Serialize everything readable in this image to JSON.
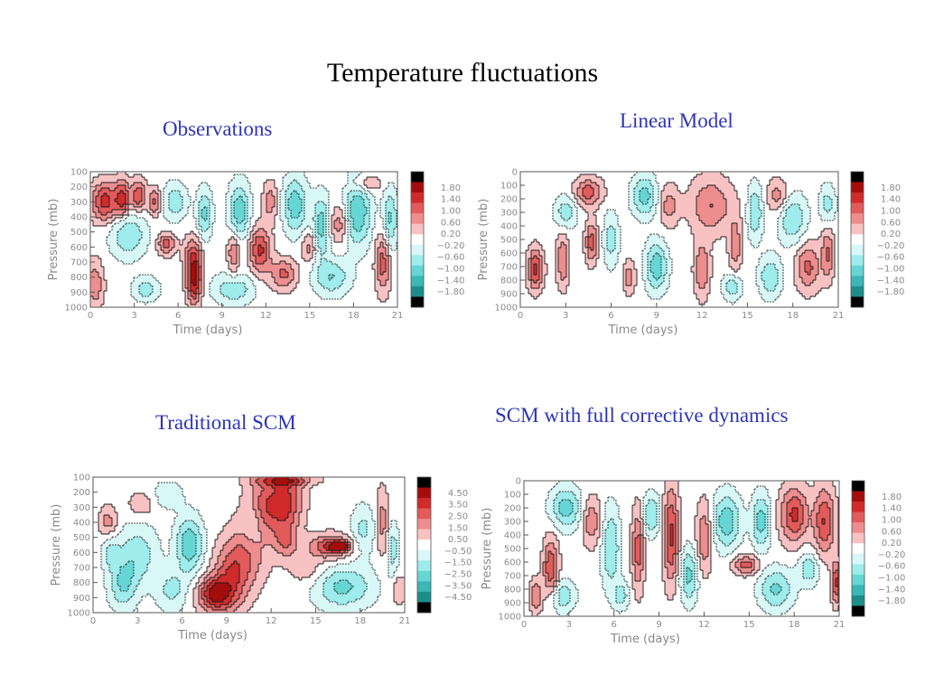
{
  "slide": {
    "title": "Temperature fluctuations"
  },
  "palette": {
    "pos": [
      "#f8c2c2",
      "#ee8d8d",
      "#e25a5a",
      "#d12a2a",
      "#a50d0d",
      "#000000"
    ],
    "neg": [
      "#d8f8f8",
      "#9eeceb",
      "#66d6d4",
      "#3bb7b5",
      "#1d8d8a",
      "#000000"
    ]
  },
  "chart_data": [
    {
      "type": "heatmap",
      "title": "Observations",
      "xlabel": "Time (days)",
      "ylabel": "Pressure (mb)",
      "xlim": [
        0,
        21
      ],
      "ylim": [
        1000,
        100
      ],
      "x_ticks": [
        "0",
        "3",
        "6",
        "9",
        "12",
        "15",
        "18",
        "21"
      ],
      "y_ticks": [
        "100",
        "200",
        "300",
        "400",
        "500",
        "600",
        "700",
        "800",
        "900",
        "1000"
      ],
      "legend": {
        "placement": "right",
        "labels": [
          "1.80",
          "1.40",
          "1.00",
          "0.60",
          "0.20",
          "−0.20",
          "−0.60",
          "−1.00",
          "−1.40",
          "−1.80"
        ]
      },
      "blobs": [
        {
          "t": 1.0,
          "p": 300,
          "rt": 0.9,
          "rp": 130,
          "v": 1.6
        },
        {
          "t": 2.2,
          "p": 280,
          "rt": 0.5,
          "rp": 120,
          "v": 1.5
        },
        {
          "t": 3.3,
          "p": 260,
          "rt": 0.5,
          "rp": 100,
          "v": 1.4
        },
        {
          "t": 4.4,
          "p": 300,
          "rt": 0.4,
          "rp": 90,
          "v": 1.1
        },
        {
          "t": 7.1,
          "p": 820,
          "rt": 0.5,
          "rp": 150,
          "v": 1.9
        },
        {
          "t": 7.0,
          "p": 650,
          "rt": 0.6,
          "rp": 120,
          "v": 1.0
        },
        {
          "t": 5.2,
          "p": 580,
          "rt": 0.6,
          "rp": 70,
          "v": 1.2
        },
        {
          "t": 9.8,
          "p": 640,
          "rt": 0.4,
          "rp": 130,
          "v": 1.0
        },
        {
          "t": 11.6,
          "p": 620,
          "rt": 0.7,
          "rp": 150,
          "v": 1.5
        },
        {
          "t": 13.2,
          "p": 780,
          "rt": 0.9,
          "rp": 100,
          "v": 1.1
        },
        {
          "t": 12.3,
          "p": 300,
          "rt": 0.5,
          "rp": 130,
          "v": 0.8
        },
        {
          "t": 17.0,
          "p": 450,
          "rt": 0.6,
          "rp": 120,
          "v": 0.9
        },
        {
          "t": 20.0,
          "p": 700,
          "rt": 0.5,
          "rp": 200,
          "v": 1.2
        },
        {
          "t": 0.3,
          "p": 850,
          "rt": 0.6,
          "rp": 160,
          "v": 0.9
        },
        {
          "t": 15.0,
          "p": 600,
          "rt": 0.5,
          "rp": 100,
          "v": 0.8
        },
        {
          "t": 18.8,
          "p": 180,
          "rt": 1.0,
          "rp": 60,
          "v": 0.8
        },
        {
          "t": 2.6,
          "p": 520,
          "rt": 1.2,
          "rp": 150,
          "v": -1.0
        },
        {
          "t": 5.8,
          "p": 300,
          "rt": 0.8,
          "rp": 120,
          "v": -0.9
        },
        {
          "t": 7.8,
          "p": 380,
          "rt": 0.5,
          "rp": 160,
          "v": -1.1
        },
        {
          "t": 10.2,
          "p": 360,
          "rt": 0.7,
          "rp": 180,
          "v": -1.3
        },
        {
          "t": 14.0,
          "p": 320,
          "rt": 0.8,
          "rp": 180,
          "v": -1.3
        },
        {
          "t": 15.8,
          "p": 460,
          "rt": 0.6,
          "rp": 200,
          "v": -1.2
        },
        {
          "t": 18.3,
          "p": 360,
          "rt": 0.9,
          "rp": 230,
          "v": -1.4
        },
        {
          "t": 9.8,
          "p": 880,
          "rt": 1.4,
          "rp": 100,
          "v": -0.9
        },
        {
          "t": 16.5,
          "p": 800,
          "rt": 1.2,
          "rp": 120,
          "v": -1.0
        },
        {
          "t": 20.5,
          "p": 420,
          "rt": 0.5,
          "rp": 200,
          "v": -1.1
        },
        {
          "t": 3.8,
          "p": 880,
          "rt": 0.9,
          "rp": 80,
          "v": -0.8
        }
      ]
    },
    {
      "type": "heatmap",
      "title": "Linear Model",
      "xlabel": "Time (days)",
      "ylabel": "Pressure (mb)",
      "xlim": [
        0,
        21
      ],
      "ylim": [
        1000,
        0
      ],
      "x_ticks": [
        "0",
        "3",
        "6",
        "9",
        "12",
        "15",
        "18",
        "21"
      ],
      "y_ticks": [
        "0",
        "100",
        "200",
        "300",
        "400",
        "500",
        "600",
        "700",
        "800",
        "900",
        "1000"
      ],
      "legend": {
        "placement": "right",
        "labels": [
          "1.80",
          "1.40",
          "1.00",
          "0.60",
          "0.20",
          "−0.20",
          "−0.60",
          "−1.00",
          "−1.40",
          "−1.80"
        ]
      },
      "blobs": [
        {
          "t": 4.5,
          "p": 150,
          "rt": 0.9,
          "rp": 100,
          "v": 1.2
        },
        {
          "t": 1.0,
          "p": 720,
          "rt": 0.5,
          "rp": 150,
          "v": 1.5
        },
        {
          "t": 2.8,
          "p": 650,
          "rt": 0.4,
          "rp": 200,
          "v": 1.0
        },
        {
          "t": 4.7,
          "p": 520,
          "rt": 0.4,
          "rp": 150,
          "v": 1.2
        },
        {
          "t": 12.6,
          "p": 250,
          "rt": 1.4,
          "rp": 200,
          "v": 1.0
        },
        {
          "t": 12.0,
          "p": 720,
          "rt": 0.5,
          "rp": 200,
          "v": 1.0
        },
        {
          "t": 17.0,
          "p": 180,
          "rt": 0.7,
          "rp": 120,
          "v": 0.8
        },
        {
          "t": 19.0,
          "p": 700,
          "rt": 0.8,
          "rp": 180,
          "v": 1.1
        },
        {
          "t": 20.3,
          "p": 600,
          "rt": 0.4,
          "rp": 200,
          "v": 1.0
        },
        {
          "t": 9.8,
          "p": 250,
          "rt": 0.6,
          "rp": 150,
          "v": 0.8
        },
        {
          "t": 7.2,
          "p": 780,
          "rt": 0.4,
          "rp": 120,
          "v": 0.8
        },
        {
          "t": 14.2,
          "p": 550,
          "rt": 0.4,
          "rp": 200,
          "v": 0.9
        },
        {
          "t": 8.2,
          "p": 180,
          "rt": 0.8,
          "rp": 150,
          "v": -1.2
        },
        {
          "t": 9.0,
          "p": 700,
          "rt": 0.7,
          "rp": 180,
          "v": -1.3
        },
        {
          "t": 3.0,
          "p": 300,
          "rt": 0.7,
          "rp": 120,
          "v": -0.9
        },
        {
          "t": 15.5,
          "p": 300,
          "rt": 0.5,
          "rp": 200,
          "v": -1.0
        },
        {
          "t": 18.0,
          "p": 350,
          "rt": 0.9,
          "rp": 180,
          "v": -1.0
        },
        {
          "t": 16.5,
          "p": 780,
          "rt": 0.7,
          "rp": 150,
          "v": -1.0
        },
        {
          "t": 14.0,
          "p": 850,
          "rt": 0.6,
          "rp": 100,
          "v": -0.9
        },
        {
          "t": 20.3,
          "p": 250,
          "rt": 0.5,
          "rp": 150,
          "v": -0.8
        },
        {
          "t": 6.0,
          "p": 500,
          "rt": 0.5,
          "rp": 200,
          "v": -0.8
        }
      ]
    },
    {
      "type": "heatmap",
      "title": "Traditional SCM",
      "xlabel": "Time (days)",
      "ylabel": "Pressure (mb)",
      "xlim": [
        0,
        21
      ],
      "ylim": [
        1000,
        100
      ],
      "x_ticks": [
        "0",
        "3",
        "6",
        "9",
        "12",
        "15",
        "18",
        "21"
      ],
      "y_ticks": [
        "100",
        "200",
        "300",
        "400",
        "500",
        "600",
        "700",
        "800",
        "900",
        "1000"
      ],
      "legend": {
        "placement": "right",
        "labels": [
          "4.50",
          "3.50",
          "2.50",
          "1.50",
          "0.50",
          "−0.50",
          "−1.50",
          "−2.50",
          "−3.50",
          "−4.50"
        ]
      },
      "blobs": [
        {
          "t": 1.0,
          "p": 400,
          "rt": 0.6,
          "rp": 100,
          "v": 2.0
        },
        {
          "t": 3.3,
          "p": 280,
          "rt": 1.0,
          "rp": 90,
          "v": 1.2
        },
        {
          "t": 8.2,
          "p": 880,
          "rt": 1.1,
          "rp": 110,
          "v": 4.6
        },
        {
          "t": 9.3,
          "p": 760,
          "rt": 1.2,
          "rp": 220,
          "v": 3.0
        },
        {
          "t": 10.5,
          "p": 600,
          "rt": 1.3,
          "rp": 220,
          "v": 2.0
        },
        {
          "t": 11.5,
          "p": 300,
          "rt": 1.2,
          "rp": 200,
          "v": 2.8
        },
        {
          "t": 13.0,
          "p": 260,
          "rt": 1.1,
          "rp": 180,
          "v": 3.6
        },
        {
          "t": 13.0,
          "p": 520,
          "rt": 0.8,
          "rp": 120,
          "v": 2.4
        },
        {
          "t": 16.0,
          "p": 560,
          "rt": 1.4,
          "rp": 80,
          "v": 3.4
        },
        {
          "t": 16.6,
          "p": 560,
          "rt": 0.6,
          "rp": 30,
          "v": 5.6
        },
        {
          "t": 14.5,
          "p": 720,
          "rt": 1.3,
          "rp": 120,
          "v": 1.2
        },
        {
          "t": 19.5,
          "p": 400,
          "rt": 0.4,
          "rp": 220,
          "v": 2.0
        },
        {
          "t": 20.6,
          "p": 850,
          "rt": 0.5,
          "rp": 100,
          "v": 1.6
        },
        {
          "t": 12.8,
          "p": 120,
          "rt": 2.0,
          "rp": 40,
          "v": 3.0
        },
        {
          "t": 6.5,
          "p": 550,
          "rt": 0.9,
          "rp": 180,
          "v": -3.4
        },
        {
          "t": 3.0,
          "p": 620,
          "rt": 1.3,
          "rp": 200,
          "v": -2.2
        },
        {
          "t": 2.0,
          "p": 820,
          "rt": 0.9,
          "rp": 160,
          "v": -2.4
        },
        {
          "t": 5.3,
          "p": 850,
          "rt": 1.0,
          "rp": 140,
          "v": -1.8
        },
        {
          "t": 16.8,
          "p": 830,
          "rt": 2.0,
          "rp": 140,
          "v": -2.8
        },
        {
          "t": 18.2,
          "p": 450,
          "rt": 0.8,
          "rp": 160,
          "v": -1.8
        },
        {
          "t": 20.2,
          "p": 580,
          "rt": 0.4,
          "rp": 180,
          "v": -2.0
        },
        {
          "t": 10.8,
          "p": 420,
          "rt": 0.7,
          "rp": 150,
          "v": -1.6
        },
        {
          "t": 5.0,
          "p": 220,
          "rt": 1.0,
          "rp": 90,
          "v": -1.4
        },
        {
          "t": 1.2,
          "p": 600,
          "rt": 0.6,
          "rp": 120,
          "v": -1.6
        }
      ]
    },
    {
      "type": "heatmap",
      "title": "SCM with full corrective dynamics",
      "xlabel": "Time (days)",
      "ylabel": "Pressure (mb)",
      "xlim": [
        0,
        21
      ],
      "ylim": [
        1000,
        0
      ],
      "x_ticks": [
        "0",
        "3",
        "6",
        "9",
        "12",
        "15",
        "18",
        "21"
      ],
      "y_ticks": [
        "0",
        "100",
        "200",
        "300",
        "400",
        "500",
        "600",
        "700",
        "800",
        "900",
        "1000"
      ],
      "legend": {
        "placement": "right",
        "labels": [
          "1.80",
          "1.40",
          "1.00",
          "0.60",
          "0.20",
          "−0.20",
          "−0.60",
          "−1.00",
          "−1.40",
          "−1.80"
        ]
      },
      "blobs": [
        {
          "t": 1.8,
          "p": 650,
          "rt": 0.5,
          "rp": 220,
          "v": 1.4
        },
        {
          "t": 4.5,
          "p": 300,
          "rt": 0.6,
          "rp": 180,
          "v": 0.9
        },
        {
          "t": 7.6,
          "p": 500,
          "rt": 0.4,
          "rp": 300,
          "v": 1.2
        },
        {
          "t": 9.8,
          "p": 400,
          "rt": 0.5,
          "rp": 350,
          "v": 1.5
        },
        {
          "t": 12.0,
          "p": 420,
          "rt": 0.5,
          "rp": 260,
          "v": 1.0
        },
        {
          "t": 14.8,
          "p": 620,
          "rt": 0.9,
          "rp": 70,
          "v": 1.2
        },
        {
          "t": 18.0,
          "p": 250,
          "rt": 0.9,
          "rp": 200,
          "v": 1.5
        },
        {
          "t": 20.0,
          "p": 300,
          "rt": 0.7,
          "rp": 250,
          "v": 1.4
        },
        {
          "t": 20.8,
          "p": 750,
          "rt": 0.3,
          "rp": 150,
          "v": 1.5
        },
        {
          "t": 0.8,
          "p": 850,
          "rt": 0.4,
          "rp": 120,
          "v": 1.0
        },
        {
          "t": 2.8,
          "p": 200,
          "rt": 1.0,
          "rp": 150,
          "v": -1.2
        },
        {
          "t": 2.5,
          "p": 850,
          "rt": 0.9,
          "rp": 120,
          "v": -0.9
        },
        {
          "t": 5.8,
          "p": 500,
          "rt": 0.6,
          "rp": 300,
          "v": -1.0
        },
        {
          "t": 8.5,
          "p": 250,
          "rt": 0.6,
          "rp": 150,
          "v": -1.0
        },
        {
          "t": 11.0,
          "p": 700,
          "rt": 0.6,
          "rp": 200,
          "v": -1.1
        },
        {
          "t": 13.5,
          "p": 300,
          "rt": 0.9,
          "rp": 200,
          "v": -1.3
        },
        {
          "t": 15.8,
          "p": 300,
          "rt": 0.6,
          "rp": 200,
          "v": -1.2
        },
        {
          "t": 16.8,
          "p": 800,
          "rt": 1.1,
          "rp": 150,
          "v": -1.1
        },
        {
          "t": 19.0,
          "p": 650,
          "rt": 0.7,
          "rp": 120,
          "v": -0.9
        },
        {
          "t": 6.5,
          "p": 850,
          "rt": 0.5,
          "rp": 100,
          "v": -0.8
        }
      ]
    }
  ]
}
